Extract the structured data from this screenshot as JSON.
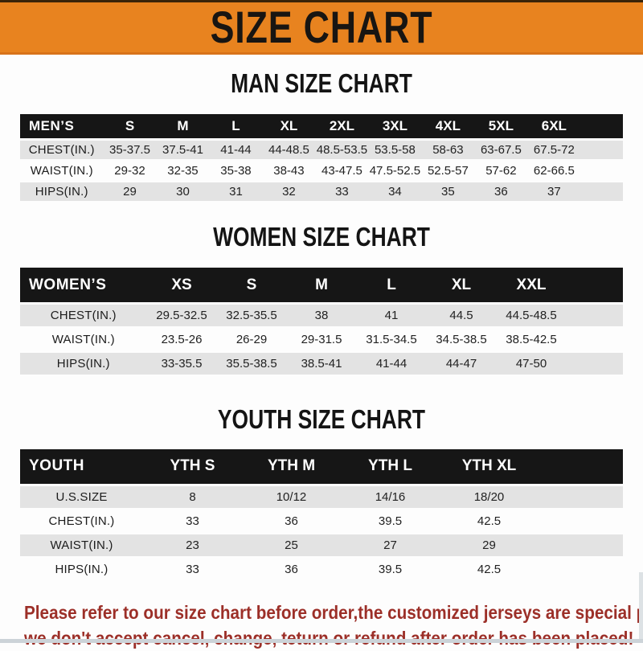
{
  "banner": {
    "title": "SIZE CHART"
  },
  "colors": {
    "banner_bg": "#E8831F",
    "band_bg": "#161616",
    "row_alt_bg": "#E3E3E3",
    "notice_red": "#9C2F28"
  },
  "sections": [
    {
      "title": "MAN SIZE CHART",
      "table": {
        "header_label": "MEN’S",
        "columns": [
          "S",
          "M",
          "L",
          "XL",
          "2XL",
          "3XL",
          "4XL",
          "5XL",
          "6XL"
        ],
        "rows": [
          {
            "label": "CHEST(IN.)",
            "values": [
              "35-37.5",
              "37.5-41",
              "41-44",
              "44-48.5",
              "48.5-53.5",
              "53.5-58",
              "58-63",
              "63-67.5",
              "67.5-72"
            ]
          },
          {
            "label": "WAIST(IN.)",
            "values": [
              "29-32",
              "32-35",
              "35-38",
              "38-43",
              "43-47.5",
              "47.5-52.5",
              "52.5-57",
              "57-62",
              "62-66.5"
            ]
          },
          {
            "label": "HIPS(IN.)",
            "values": [
              "29",
              "30",
              "31",
              "32",
              "33",
              "34",
              "35",
              "36",
              "37"
            ]
          }
        ]
      }
    },
    {
      "title": "WOMEN SIZE CHART",
      "table": {
        "header_label": "WOMEN’S",
        "columns": [
          "XS",
          "S",
          "M",
          "L",
          "XL",
          "XXL"
        ],
        "rows": [
          {
            "label": "CHEST(IN.)",
            "values": [
              "29.5-32.5",
              "32.5-35.5",
              "38",
              "41",
              "44.5",
              "44.5-48.5"
            ]
          },
          {
            "label": "WAIST(IN.)",
            "values": [
              "23.5-26",
              "26-29",
              "29-31.5",
              "31.5-34.5",
              "34.5-38.5",
              "38.5-42.5"
            ]
          },
          {
            "label": "HIPS(IN.)",
            "values": [
              "33-35.5",
              "35.5-38.5",
              "38.5-41",
              "41-44",
              "44-47",
              "47-50"
            ]
          }
        ]
      }
    },
    {
      "title": "YOUTH SIZE CHART",
      "table": {
        "header_label": "YOUTH",
        "columns": [
          "YTH S",
          "YTH M",
          "YTH L",
          "YTH XL"
        ],
        "rows": [
          {
            "label": "U.S.SIZE",
            "values": [
              "8",
              "10/12",
              "14/16",
              "18/20"
            ]
          },
          {
            "label": "CHEST(IN.)",
            "values": [
              "33",
              "36",
              "39.5",
              "42.5"
            ]
          },
          {
            "label": "WAIST(IN.)",
            "values": [
              "23",
              "25",
              "27",
              "29"
            ]
          },
          {
            "label": "HIPS(IN.)",
            "values": [
              "33",
              "36",
              "39.5",
              "42.5"
            ]
          }
        ]
      }
    }
  ],
  "notice": {
    "line1": "Please refer to our size chart before order,the customized jerseys are special products,",
    "line2": "we don't accept cancel, change, teturn or refund after order has been placed!"
  }
}
